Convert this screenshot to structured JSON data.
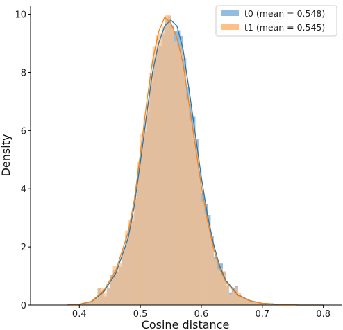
{
  "chart_data": {
    "type": "histogram",
    "title": "",
    "xlabel": "Cosine distance",
    "ylabel": "Density",
    "xlim": [
      0.32,
      0.83
    ],
    "ylim": [
      0,
      10.3
    ],
    "xticks": [
      0.4,
      0.5,
      0.6,
      0.7,
      0.8
    ],
    "xtick_labels": [
      "0.4",
      "0.5",
      "0.6",
      "0.7",
      "0.8"
    ],
    "yticks": [
      0,
      2,
      4,
      6,
      8,
      10
    ],
    "ytick_labels": [
      "0",
      "2",
      "4",
      "6",
      "8",
      "10"
    ],
    "grid": false,
    "legend_position": "top-right",
    "series": [
      {
        "name": "t0 (mean = 0.548)",
        "color": "#1f77b4",
        "fill": "#94bcdc",
        "x": [
          0.38,
          0.4,
          0.42,
          0.44,
          0.46,
          0.48,
          0.49,
          0.5,
          0.51,
          0.52,
          0.53,
          0.54,
          0.55,
          0.56,
          0.57,
          0.58,
          0.59,
          0.6,
          0.61,
          0.62,
          0.63,
          0.64,
          0.66,
          0.68,
          0.7,
          0.73,
          0.76,
          0.8
        ],
        "density": [
          0.0,
          0.03,
          0.12,
          0.45,
          1.1,
          2.3,
          3.4,
          4.9,
          6.5,
          8.0,
          9.0,
          9.6,
          9.8,
          9.6,
          8.8,
          7.4,
          5.9,
          4.4,
          3.1,
          2.1,
          1.35,
          0.85,
          0.35,
          0.15,
          0.06,
          0.02,
          0.0,
          0.0
        ]
      },
      {
        "name": "t1 (mean = 0.545)",
        "color": "#ff7f0e",
        "fill": "#ffbf86",
        "x": [
          0.38,
          0.4,
          0.42,
          0.44,
          0.46,
          0.48,
          0.49,
          0.5,
          0.51,
          0.52,
          0.53,
          0.54,
          0.55,
          0.56,
          0.57,
          0.58,
          0.59,
          0.6,
          0.61,
          0.62,
          0.63,
          0.64,
          0.66,
          0.68,
          0.7,
          0.73,
          0.76,
          0.8
        ],
        "density": [
          0.0,
          0.03,
          0.13,
          0.5,
          1.2,
          2.5,
          3.6,
          5.2,
          6.9,
          8.4,
          9.4,
          9.9,
          9.7,
          9.2,
          8.3,
          6.9,
          5.5,
          4.1,
          2.9,
          1.95,
          1.25,
          0.8,
          0.33,
          0.14,
          0.06,
          0.02,
          0.0,
          0.0
        ]
      }
    ]
  }
}
